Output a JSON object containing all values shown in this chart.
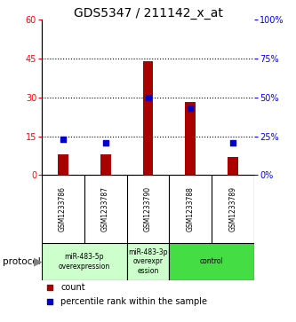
{
  "title": "GDS5347 / 211142_x_at",
  "samples": [
    "GSM1233786",
    "GSM1233787",
    "GSM1233790",
    "GSM1233788",
    "GSM1233789"
  ],
  "counts": [
    8,
    8,
    44,
    28,
    7
  ],
  "percentile_ranks": [
    23,
    21,
    50,
    43,
    21
  ],
  "ylim_left": [
    0,
    60
  ],
  "ylim_right": [
    0,
    100
  ],
  "yticks_left": [
    0,
    15,
    30,
    45,
    60
  ],
  "yticks_right": [
    0,
    25,
    50,
    75,
    100
  ],
  "bar_color": "#aa0000",
  "dot_color": "#0000cc",
  "protocol_groups": [
    {
      "indices": [
        0,
        1
      ],
      "label": "miR-483-5p\noverexpression",
      "color": "#ccffcc"
    },
    {
      "indices": [
        2
      ],
      "label": "miR-483-3p\noverexpr\nession",
      "color": "#ccffcc"
    },
    {
      "indices": [
        3,
        4
      ],
      "label": "control",
      "color": "#44dd44"
    }
  ],
  "sample_bg": "#d8d8d8",
  "plot_bg": "#ffffff",
  "title_fontsize": 10,
  "tick_fontsize": 7,
  "bar_width": 0.25
}
